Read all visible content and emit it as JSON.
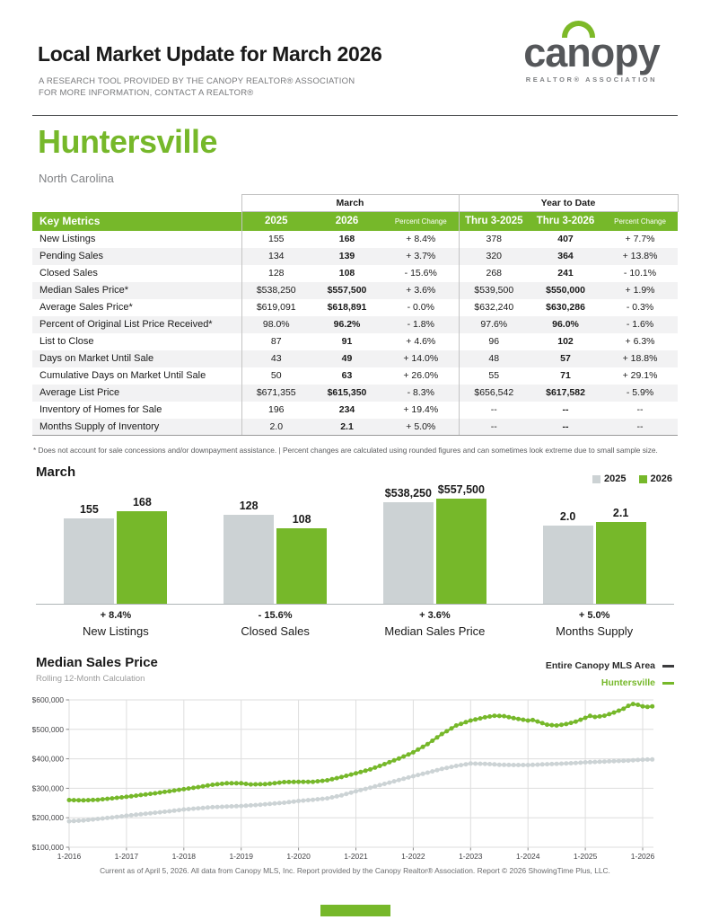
{
  "page": {
    "title": "Local Market Update for March 2026",
    "subtitle1": "A RESEARCH TOOL PROVIDED BY THE CANOPY REALTOR® ASSOCIATION",
    "subtitle2": "FOR MORE INFORMATION, CONTACT A REALTOR®",
    "footer": "Current as of April 5, 2026. All data from Canopy MLS, Inc. Report provided by the Canopy Realtor® Association. Report © 2026 ShowingTime Plus, LLC.",
    "accent_color": "#76b82a"
  },
  "logo": {
    "brand_pre": "ca",
    "brand_mid": "n",
    "brand_post": "opy",
    "tagline": "REALTOR® ASSOCIATION"
  },
  "location": {
    "name": "Huntersville",
    "state": "North Carolina"
  },
  "table": {
    "group_headers": [
      "March",
      "Year to Date"
    ],
    "header": {
      "key_metrics": "Key Metrics",
      "cols": [
        "2025",
        "2026",
        "Percent Change",
        "Thru 3-2025",
        "Thru 3-2026",
        "Percent Change"
      ]
    },
    "rows": [
      {
        "label": "New Listings",
        "values": [
          "155",
          "168",
          "+ 8.4%",
          "378",
          "407",
          "+ 7.7%"
        ]
      },
      {
        "label": "Pending Sales",
        "values": [
          "134",
          "139",
          "+ 3.7%",
          "320",
          "364",
          "+ 13.8%"
        ]
      },
      {
        "label": "Closed Sales",
        "values": [
          "128",
          "108",
          "- 15.6%",
          "268",
          "241",
          "- 10.1%"
        ]
      },
      {
        "label": "Median Sales Price*",
        "values": [
          "$538,250",
          "$557,500",
          "+ 3.6%",
          "$539,500",
          "$550,000",
          "+ 1.9%"
        ]
      },
      {
        "label": "Average Sales Price*",
        "values": [
          "$619,091",
          "$618,891",
          "- 0.0%",
          "$632,240",
          "$630,286",
          "- 0.3%"
        ]
      },
      {
        "label": "Percent of Original List Price Received*",
        "values": [
          "98.0%",
          "96.2%",
          "- 1.8%",
          "97.6%",
          "96.0%",
          "- 1.6%"
        ]
      },
      {
        "label": "List to Close",
        "values": [
          "87",
          "91",
          "+ 4.6%",
          "96",
          "102",
          "+ 6.3%"
        ]
      },
      {
        "label": "Days on Market Until Sale",
        "values": [
          "43",
          "49",
          "+ 14.0%",
          "48",
          "57",
          "+ 18.8%"
        ]
      },
      {
        "label": "Cumulative Days on Market Until Sale",
        "values": [
          "50",
          "63",
          "+ 26.0%",
          "55",
          "71",
          "+ 29.1%"
        ]
      },
      {
        "label": "Average List Price",
        "values": [
          "$671,355",
          "$615,350",
          "- 8.3%",
          "$656,542",
          "$617,582",
          "- 5.9%"
        ]
      },
      {
        "label": "Inventory of Homes for Sale",
        "values": [
          "196",
          "234",
          "+ 19.4%",
          "--",
          "--",
          "--"
        ]
      },
      {
        "label": "Months Supply of Inventory",
        "values": [
          "2.0",
          "2.1",
          "+ 5.0%",
          "--",
          "--",
          "--"
        ]
      }
    ],
    "footnote": "* Does not account for sale concessions and/or downpayment assistance.  |  Percent changes are calculated using rounded figures and can sometimes look extreme due to small sample size."
  },
  "chart_data": [
    {
      "type": "bar",
      "title": "March",
      "legend": [
        {
          "label": "2025",
          "color": "#ccd2d4"
        },
        {
          "label": "2026",
          "color": "#76b82a"
        }
      ],
      "groups": [
        {
          "label": "New Listings",
          "pct_change": "+ 8.4%",
          "values": [
            155,
            168
          ],
          "display": [
            "155",
            "168"
          ]
        },
        {
          "label": "Closed Sales",
          "pct_change": "- 15.6%",
          "values": [
            128,
            108
          ],
          "display": [
            "128",
            "108"
          ]
        },
        {
          "label": "Median Sales Price",
          "pct_change": "+ 3.6%",
          "values": [
            538250,
            557500
          ],
          "display": [
            "$538,250",
            "$557,500"
          ]
        },
        {
          "label": "Months Supply",
          "pct_change": "+ 5.0%",
          "values": [
            2.0,
            2.1
          ],
          "display": [
            "2.0",
            "2.1"
          ]
        }
      ]
    },
    {
      "type": "line",
      "title": "Median Sales Price",
      "subtitle": "Rolling 12-Month Calculation",
      "unit": "USD thousands",
      "ylim": [
        100,
        600
      ],
      "y_ticks": [
        "$600,000",
        "$500,000",
        "$400,000",
        "$300,000",
        "$200,000",
        "$100,000"
      ],
      "x_ticks": [
        "1-2016",
        "1-2017",
        "1-2018",
        "1-2019",
        "1-2020",
        "1-2021",
        "1-2022",
        "1-2023",
        "1-2024",
        "1-2025",
        "1-2026"
      ],
      "series": [
        {
          "name": "Entire Canopy MLS Area",
          "color": "#ccd3d5",
          "points": [
            [
              2016.0,
              188
            ],
            [
              2016.25,
              191
            ],
            [
              2016.5,
              196
            ],
            [
              2016.75,
              201
            ],
            [
              2017.0,
              207
            ],
            [
              2017.25,
              212
            ],
            [
              2017.5,
              217
            ],
            [
              2017.75,
              222
            ],
            [
              2018.0,
              228
            ],
            [
              2018.25,
              232
            ],
            [
              2018.5,
              236
            ],
            [
              2018.75,
              238
            ],
            [
              2019.0,
              240
            ],
            [
              2019.25,
              243
            ],
            [
              2019.5,
              247
            ],
            [
              2019.75,
              251
            ],
            [
              2020.0,
              257
            ],
            [
              2020.25,
              261
            ],
            [
              2020.5,
              266
            ],
            [
              2020.75,
              276
            ],
            [
              2021.0,
              290
            ],
            [
              2021.25,
              302
            ],
            [
              2021.5,
              315
            ],
            [
              2021.75,
              328
            ],
            [
              2022.0,
              341
            ],
            [
              2022.25,
              353
            ],
            [
              2022.5,
              366
            ],
            [
              2022.75,
              376
            ],
            [
              2023.0,
              384
            ],
            [
              2023.25,
              383
            ],
            [
              2023.5,
              380
            ],
            [
              2023.75,
              379
            ],
            [
              2024.0,
              379
            ],
            [
              2024.25,
              381
            ],
            [
              2024.5,
              383
            ],
            [
              2024.75,
              385
            ],
            [
              2025.0,
              388
            ],
            [
              2025.25,
              390
            ],
            [
              2025.5,
              392
            ],
            [
              2025.75,
              394
            ],
            [
              2026.0,
              397
            ],
            [
              2026.17,
              398
            ]
          ]
        },
        {
          "name": "Huntersville",
          "color": "#76b82a",
          "points": [
            [
              2016.0,
              260
            ],
            [
              2016.25,
              259
            ],
            [
              2016.5,
              261
            ],
            [
              2016.75,
              266
            ],
            [
              2017.0,
              271
            ],
            [
              2017.25,
              277
            ],
            [
              2017.5,
              283
            ],
            [
              2017.75,
              290
            ],
            [
              2018.0,
              297
            ],
            [
              2018.25,
              304
            ],
            [
              2018.5,
              312
            ],
            [
              2018.75,
              317
            ],
            [
              2019.0,
              317
            ],
            [
              2019.17,
              313
            ],
            [
              2019.42,
              314
            ],
            [
              2019.75,
              321
            ],
            [
              2020.0,
              322
            ],
            [
              2020.25,
              322
            ],
            [
              2020.5,
              327
            ],
            [
              2020.75,
              338
            ],
            [
              2021.0,
              351
            ],
            [
              2021.25,
              364
            ],
            [
              2021.5,
              382
            ],
            [
              2021.75,
              401
            ],
            [
              2022.0,
              422
            ],
            [
              2022.25,
              450
            ],
            [
              2022.5,
              484
            ],
            [
              2022.75,
              513
            ],
            [
              2023.0,
              530
            ],
            [
              2023.25,
              541
            ],
            [
              2023.42,
              546
            ],
            [
              2023.58,
              545
            ],
            [
              2023.75,
              538
            ],
            [
              2024.0,
              530
            ],
            [
              2024.08,
              532
            ],
            [
              2024.33,
              516
            ],
            [
              2024.5,
              513
            ],
            [
              2024.67,
              518
            ],
            [
              2024.83,
              526
            ],
            [
              2025.0,
              539
            ],
            [
              2025.08,
              546
            ],
            [
              2025.17,
              542
            ],
            [
              2025.33,
              546
            ],
            [
              2025.5,
              557
            ],
            [
              2025.67,
              570
            ],
            [
              2025.75,
              580
            ],
            [
              2025.83,
              586
            ],
            [
              2025.92,
              583
            ],
            [
              2026.0,
              578
            ],
            [
              2026.08,
              576
            ],
            [
              2026.17,
              578
            ]
          ]
        }
      ]
    }
  ]
}
